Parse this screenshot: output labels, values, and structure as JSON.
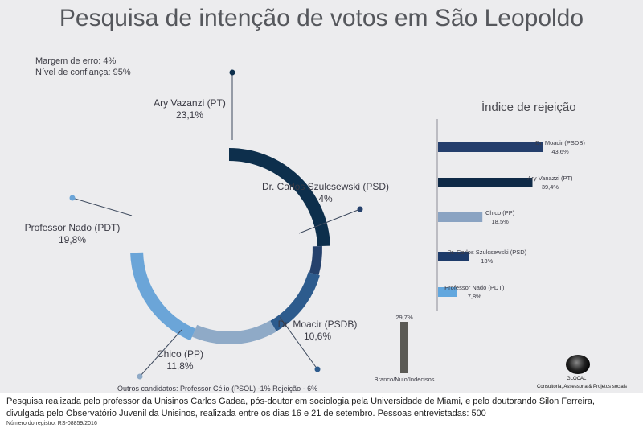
{
  "title": "Pesquisa de intenção de votos em São Leopoldo",
  "margin": "Margem de erro: 4%",
  "confidence": "Nível de confiança: 95%",
  "chart_data": [
    {
      "type": "pie",
      "categories": [
        "Ary Vazanzi (PT)",
        "Dr. Carlos Szulcsewski (PSD)",
        "Dr. Moacir (PSDB)",
        "Chico (PP)",
        "Professor Nado (PDT)"
      ],
      "values": [
        23.1,
        4,
        10.6,
        11.8,
        19.8
      ],
      "value_labels": [
        "23,1%",
        "4%",
        "10,6%",
        "11,8%",
        "19,8%"
      ],
      "colors": [
        "#0d2f4c",
        "#25416c",
        "#2d5b8d",
        "#8faac7",
        "#6ba5d8"
      ],
      "note": "Outros candidatos: Professor Célio (PSOL) -1%   Rejeição - 6%"
    },
    {
      "type": "bar",
      "title": "Índice de rejeição",
      "categories": [
        "Dr. Moacir (PSDB)",
        "Ary Vanazzi (PT)",
        "Chico (PP)",
        "Dr. Carlos Szulcsewski (PSD)",
        "Professor Nado (PDT)"
      ],
      "values": [
        43.6,
        39.4,
        18.5,
        13,
        7.8
      ],
      "value_labels": [
        "43,6%",
        "39,4%",
        "18,5%",
        "13%",
        "7,8%"
      ],
      "colors": [
        "#243e6c",
        "#0f2a47",
        "#8aa3c2",
        "#1d3a69",
        "#62a7de"
      ]
    },
    {
      "type": "bar",
      "categories": [
        "Branco/Nulo/Indecisos"
      ],
      "values": [
        29.7
      ],
      "value_labels": [
        "29,7%"
      ],
      "colors": [
        "#5b5a55"
      ]
    }
  ],
  "logo": {
    "name": "GLOCAL",
    "subtitle": "Consultoria, Assessoria & Projetos sociais"
  },
  "footer": {
    "line1": "Pesquisa realizada pelo professor da Unisinos Carlos Gadea, pós-doutor em sociologia pela Universidade de Miami, e pelo doutorando Silon Ferreira,",
    "line2": "divulgada pelo Observatório Juvenil da Unisinos, realizada entre os dias 16 e 21 de setembro. Pessoas entrevistadas: 500",
    "registration": "Número do registro: RS-08859/2016"
  }
}
